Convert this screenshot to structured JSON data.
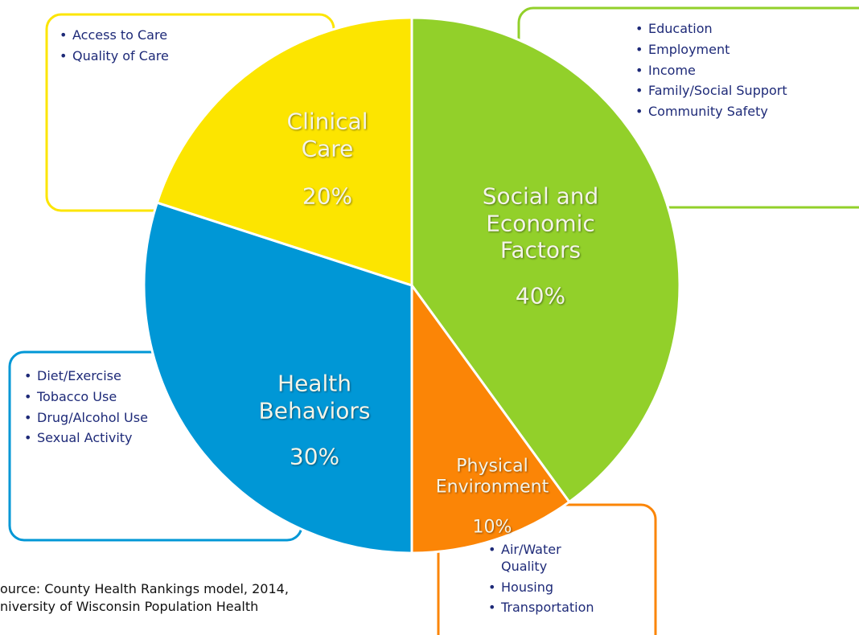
{
  "chart_data": {
    "type": "pie",
    "series": [
      {
        "name": "Social and\nEconomic\nFactors",
        "value": 40,
        "value_label": "40%",
        "color": "#92d02a",
        "details": [
          "Education",
          "Employment",
          "Income",
          "Family/Social Support",
          "Community Safety"
        ]
      },
      {
        "name": "Physical\nEnvironment",
        "value": 10,
        "value_label": "10%",
        "color": "#fb8506",
        "details": [
          "Air/Water Quality",
          "Housing",
          "Transportation"
        ]
      },
      {
        "name": "Health\nBehaviors",
        "value": 30,
        "value_label": "30%",
        "color": "#0097d6",
        "details": [
          "Diet/Exercise",
          "Tobacco Use",
          "Drug/Alcohol Use",
          "Sexual Activity"
        ]
      },
      {
        "name": "Clinical\nCare",
        "value": 20,
        "value_label": "20%",
        "color": "#fce500",
        "details": [
          "Access to Care",
          "Quality of Care"
        ]
      }
    ],
    "source": [
      "ource: County Health Rankings model, 2014,",
      "niversity of Wisconsin Population Health"
    ]
  }
}
